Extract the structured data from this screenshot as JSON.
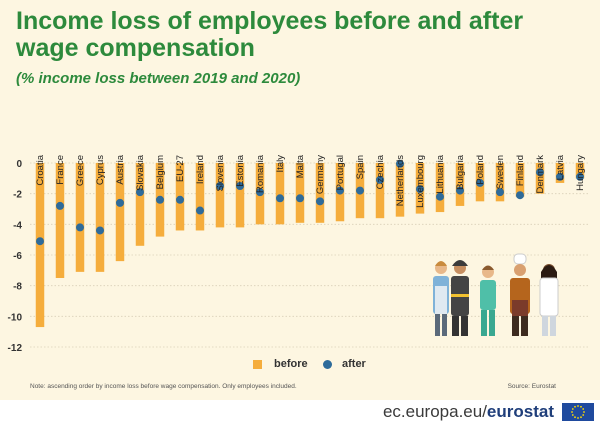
{
  "header": {
    "title": "Income loss of employees before and after wage compensation",
    "subtitle": "(%  income loss between 2019 and 2020)"
  },
  "legend": {
    "before": "before",
    "after": "after"
  },
  "footer": {
    "note": "Note: ascending order by income loss before wage compensation. Only employees included.",
    "source": "Source:  Eurostat",
    "site_plain": "ec.europa.eu/",
    "site_bold": "eurostat"
  },
  "colors": {
    "before": "#f5ad3c",
    "after": "#2e6b9a",
    "accent": "#2d8a3c",
    "background": "#fdf6e1"
  },
  "chart_data": {
    "type": "bar",
    "categories": [
      "Croatia",
      "France",
      "Greece",
      "Cyprus",
      "Austria",
      "Slovakia",
      "Belgium",
      "EU-27",
      "Ireland",
      "Slovenia",
      "Estonia",
      "Romania",
      "Italy",
      "Malta",
      "Germany",
      "Portugal",
      "Spain",
      "Czechia",
      "Netherlands",
      "Luxembourg",
      "Lithuania",
      "Bulgaria",
      "Poland",
      "Sweden",
      "Finland",
      "Denmark",
      "Latvia",
      "Hungary"
    ],
    "series": [
      {
        "name": "before",
        "style": "bar",
        "values": [
          -10.7,
          -7.5,
          -7.1,
          -7.1,
          -6.4,
          -5.4,
          -4.8,
          -4.4,
          -4.4,
          -4.2,
          -4.2,
          -4.0,
          -4.0,
          -3.9,
          -3.9,
          -3.8,
          -3.6,
          -3.6,
          -3.5,
          -3.3,
          -3.2,
          -2.8,
          -2.5,
          -2.5,
          -2.2,
          -2.0,
          -1.3,
          -1.0
        ]
      },
      {
        "name": "after",
        "style": "dot",
        "values": [
          -5.1,
          -2.8,
          -4.2,
          -4.4,
          -2.6,
          -1.9,
          -2.4,
          -2.4,
          -3.1,
          -1.5,
          -1.5,
          -1.9,
          -2.3,
          -2.3,
          -2.5,
          -1.8,
          -1.8,
          -1.1,
          -0.05,
          -1.7,
          -2.2,
          -1.8,
          -1.3,
          -1.9,
          -2.1,
          -0.6,
          -0.9,
          -0.9
        ]
      }
    ],
    "ylim": [
      -12,
      0
    ],
    "yticks": [
      "0",
      "-2",
      "-4",
      "-6",
      "-8",
      "-10",
      "-12"
    ],
    "grid": true,
    "legend_position": "bottom"
  }
}
